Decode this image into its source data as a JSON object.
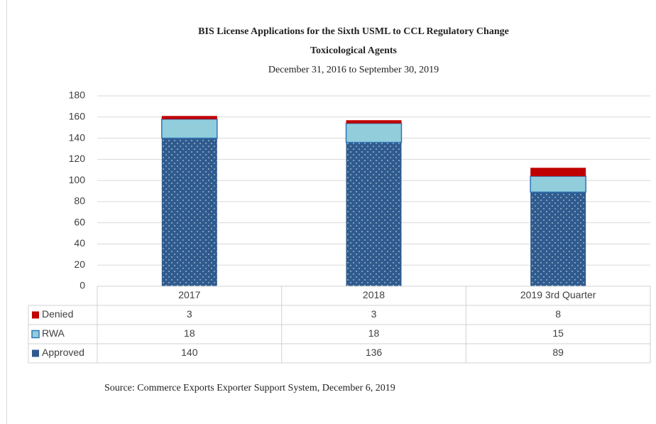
{
  "chart_data": {
    "type": "bar",
    "stacked": true,
    "title": "BIS License Applications for the Sixth USML to CCL Regulatory Change",
    "subtitle": "Toxicological Agents",
    "date_range": "December 31, 2016  to September 30, 2019",
    "source": "Source: Commerce Exports Exporter Support System,  December 6, 2019",
    "categories": [
      "2017",
      "2018",
      "2019 3rd Quarter"
    ],
    "series": [
      {
        "name": "Denied",
        "color": "#c00000",
        "values": [
          3,
          3,
          8
        ]
      },
      {
        "name": "RWA",
        "color": "#92cddc",
        "values": [
          18,
          18,
          15
        ]
      },
      {
        "name": "Approved",
        "color": "#2f5b8e",
        "values": [
          140,
          136,
          89
        ]
      }
    ],
    "ylim": [
      0,
      180
    ],
    "yticks": [
      0,
      20,
      40,
      60,
      80,
      100,
      120,
      140,
      160,
      180
    ],
    "grid": true,
    "legend": "data-table"
  }
}
